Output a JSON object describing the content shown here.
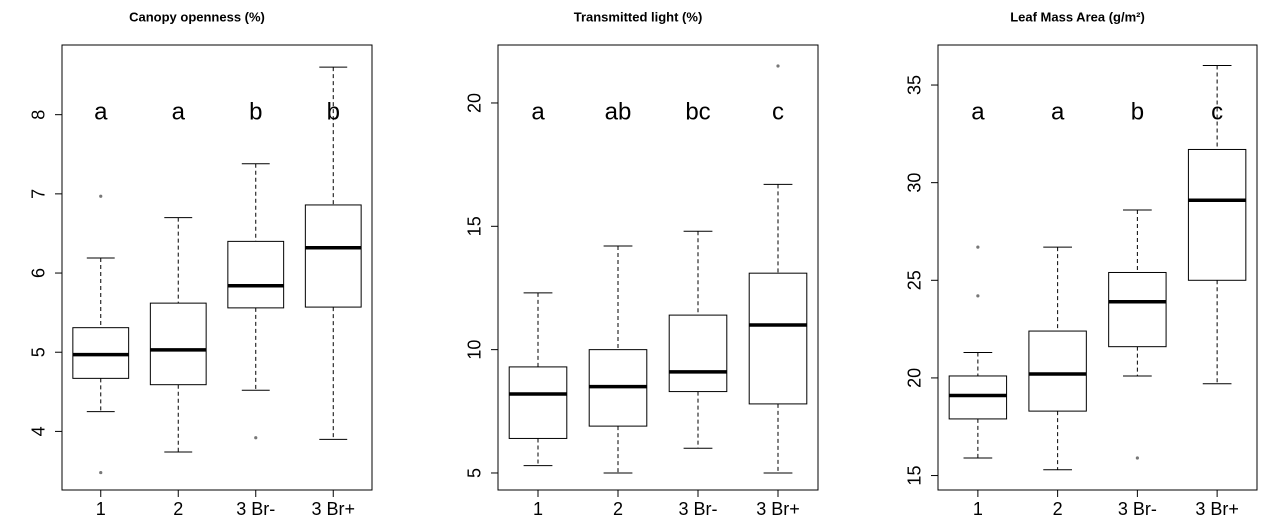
{
  "chart_data": [
    {
      "type": "boxplot",
      "title": "Canopy openness (%)",
      "categories": [
        "1",
        "2",
        "3 Br-",
        "3 Br+"
      ],
      "annotations": [
        "a",
        "a",
        "b",
        "b"
      ],
      "boxes": [
        {
          "min": 4.25,
          "q1": 4.67,
          "median": 4.97,
          "q3": 5.31,
          "max": 6.19,
          "outliers": [
            6.97,
            3.48
          ]
        },
        {
          "min": 3.74,
          "q1": 4.59,
          "median": 5.03,
          "q3": 5.62,
          "max": 6.7,
          "outliers": []
        },
        {
          "min": 4.52,
          "q1": 5.56,
          "median": 5.84,
          "q3": 6.4,
          "max": 7.38,
          "outliers": [
            3.92
          ]
        },
        {
          "min": 3.9,
          "q1": 5.57,
          "median": 6.32,
          "q3": 6.86,
          "max": 8.6,
          "outliers": []
        }
      ],
      "ylim": [
        3.26,
        8.88
      ],
      "yticks": [
        4,
        5,
        6,
        7,
        8
      ]
    },
    {
      "type": "boxplot",
      "title": "Transmitted light (%)",
      "categories": [
        "1",
        "2",
        "3 Br-",
        "3 Br+"
      ],
      "annotations": [
        "a",
        "ab",
        "bc",
        "c"
      ],
      "boxes": [
        {
          "min": 5.3,
          "q1": 6.4,
          "median": 8.2,
          "q3": 9.3,
          "max": 12.3,
          "outliers": []
        },
        {
          "min": 5.0,
          "q1": 6.9,
          "median": 8.5,
          "q3": 10.0,
          "max": 14.2,
          "outliers": []
        },
        {
          "min": 6.0,
          "q1": 8.3,
          "median": 9.1,
          "q3": 11.4,
          "max": 14.8,
          "outliers": []
        },
        {
          "min": 5.0,
          "q1": 7.8,
          "median": 11.0,
          "q3": 13.1,
          "max": 16.7,
          "outliers": [
            21.5
          ]
        }
      ],
      "ylim": [
        4.31,
        22.35
      ],
      "yticks": [
        5,
        10,
        15,
        20
      ]
    },
    {
      "type": "boxplot",
      "title": "Leaf Mass Area (g/m²)",
      "categories": [
        "1",
        "2",
        "3 Br-",
        "3 Br+"
      ],
      "annotations": [
        "a",
        "a",
        "b",
        "c"
      ],
      "boxes": [
        {
          "min": 15.9,
          "q1": 17.9,
          "median": 19.1,
          "q3": 20.1,
          "max": 21.3,
          "outliers": [
            24.2,
            26.7
          ]
        },
        {
          "min": 15.3,
          "q1": 18.3,
          "median": 20.2,
          "q3": 22.4,
          "max": 26.7,
          "outliers": []
        },
        {
          "min": 20.1,
          "q1": 21.6,
          "median": 23.9,
          "q3": 25.4,
          "max": 28.6,
          "outliers": [
            15.9
          ]
        },
        {
          "min": 19.7,
          "q1": 25.0,
          "median": 29.1,
          "q3": 31.7,
          "max": 36.0,
          "outliers": []
        }
      ],
      "ylim": [
        14.26,
        37.05
      ],
      "yticks": [
        15,
        20,
        25,
        30,
        35
      ]
    }
  ]
}
